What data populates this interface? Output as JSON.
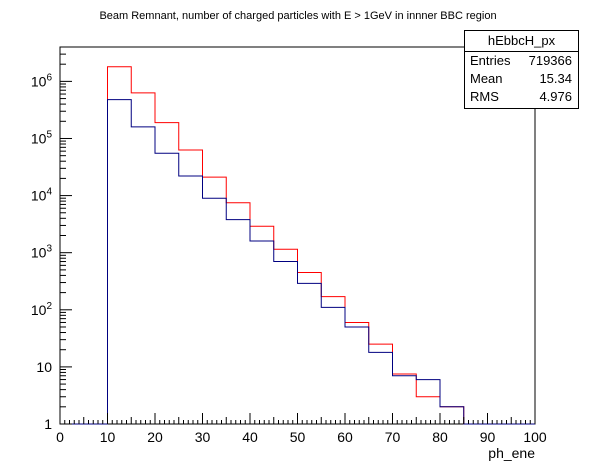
{
  "title": "Beam Remnant, number of charged particles with E > 1GeV in innner BBC region",
  "stats": {
    "name": "hEbbcH_px",
    "rows": [
      {
        "label": "Entries",
        "value": "719366"
      },
      {
        "label": "Mean",
        "value": "15.34"
      },
      {
        "label": "RMS",
        "value": "4.976"
      }
    ]
  },
  "chart_data": {
    "type": "histogram",
    "title": "Beam Remnant, number of charged particles with E > 1GeV in innner BBC region",
    "xlabel": "ph_ene",
    "ylabel": "",
    "xlim": [
      0,
      100
    ],
    "ylim": [
      1,
      4000000
    ],
    "yscale": "log",
    "bin_width": 5,
    "bin_edges": [
      0,
      5,
      10,
      15,
      20,
      25,
      30,
      35,
      40,
      45,
      50,
      55,
      60,
      65,
      70,
      75,
      80,
      85,
      90,
      95,
      100
    ],
    "x_ticks": [
      "0",
      "10",
      "20",
      "30",
      "40",
      "50",
      "60",
      "70",
      "80",
      "90",
      "100"
    ],
    "y_ticks": [
      {
        "value": 1,
        "base": "1",
        "exp": ""
      },
      {
        "value": 10,
        "base": "10",
        "exp": ""
      },
      {
        "value": 100,
        "base": "10",
        "exp": "2"
      },
      {
        "value": 1000,
        "base": "10",
        "exp": "3"
      },
      {
        "value": 10000,
        "base": "10",
        "exp": "4"
      },
      {
        "value": 100000,
        "base": "10",
        "exp": "5"
      },
      {
        "value": 1000000,
        "base": "10",
        "exp": "6"
      }
    ],
    "series": [
      {
        "color": "#ff0000",
        "values": [
          0,
          0,
          1800000,
          630000,
          190000,
          63000,
          21000,
          7500,
          2900,
          1150,
          450,
          170,
          60,
          25,
          7.5,
          3,
          2,
          0,
          0,
          0
        ]
      },
      {
        "color": "#000080",
        "values": [
          0,
          0,
          480000,
          160000,
          55000,
          22000,
          9000,
          3800,
          1600,
          700,
          290,
          110,
          50,
          18,
          7,
          6,
          2,
          1,
          0,
          0
        ]
      }
    ],
    "grid": false,
    "legend": "top-right stats box"
  }
}
